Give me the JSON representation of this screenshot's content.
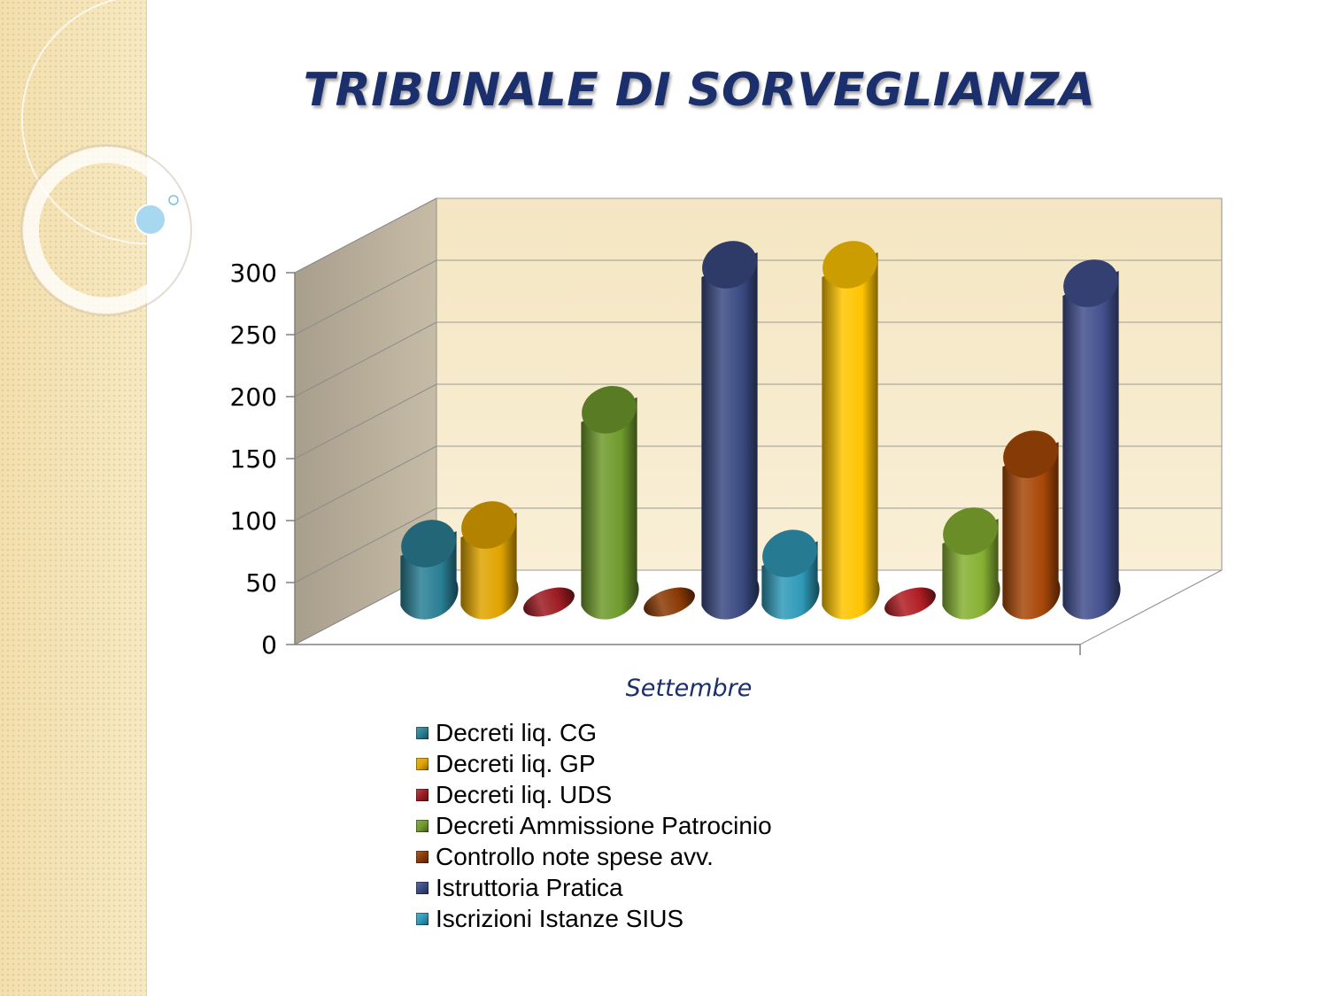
{
  "slide": {
    "title": "TRIBUNALE DI SORVEGLIANZA"
  },
  "colors": {
    "sidebar": "#f5e4b6",
    "title": "#1a2f6b",
    "wall_back": "#f7eccd",
    "wall_side": "#bdb39f",
    "floor": "#ffffff"
  },
  "chart_data": {
    "type": "bar",
    "style": "3d-cylinder",
    "title": "",
    "xlabel": "",
    "ylabel": "",
    "categories": [
      "Settembre"
    ],
    "ylim": [
      0,
      300
    ],
    "yticks": [
      0,
      50,
      100,
      150,
      200,
      250,
      300
    ],
    "grid": true,
    "legend_position": "bottom",
    "series": [
      {
        "name": "Decreti liq. CG",
        "color": "#2a7f95",
        "values": [
          40
        ]
      },
      {
        "name": "Decreti liq. GP",
        "color": "#e0a400",
        "values": [
          55
        ]
      },
      {
        "name": "Decreti liq. UDS",
        "color": "#9c1c22",
        "values": [
          0
        ]
      },
      {
        "name": "Decreti Ammissione Patrocinio",
        "color": "#6e9a2c",
        "values": [
          148
        ]
      },
      {
        "name": "Controllo note spese avv.",
        "color": "#8a3a05",
        "values": [
          0
        ]
      },
      {
        "name": "Istruttoria Pratica",
        "color": "#3a4a82",
        "values": [
          265
        ]
      },
      {
        "name": "Iscrizioni Istanze SIUS",
        "color": "#2f9ab8",
        "values": [
          32
        ]
      },
      {
        "name": "",
        "color": "#ffc400",
        "values": [
          265
        ]
      },
      {
        "name": "",
        "color": "#b01e24",
        "values": [
          0
        ]
      },
      {
        "name": "",
        "color": "#86b032",
        "values": [
          50
        ]
      },
      {
        "name": "",
        "color": "#a84808",
        "values": [
          112
        ]
      },
      {
        "name": "",
        "color": "#42508e",
        "values": [
          250
        ]
      }
    ]
  }
}
